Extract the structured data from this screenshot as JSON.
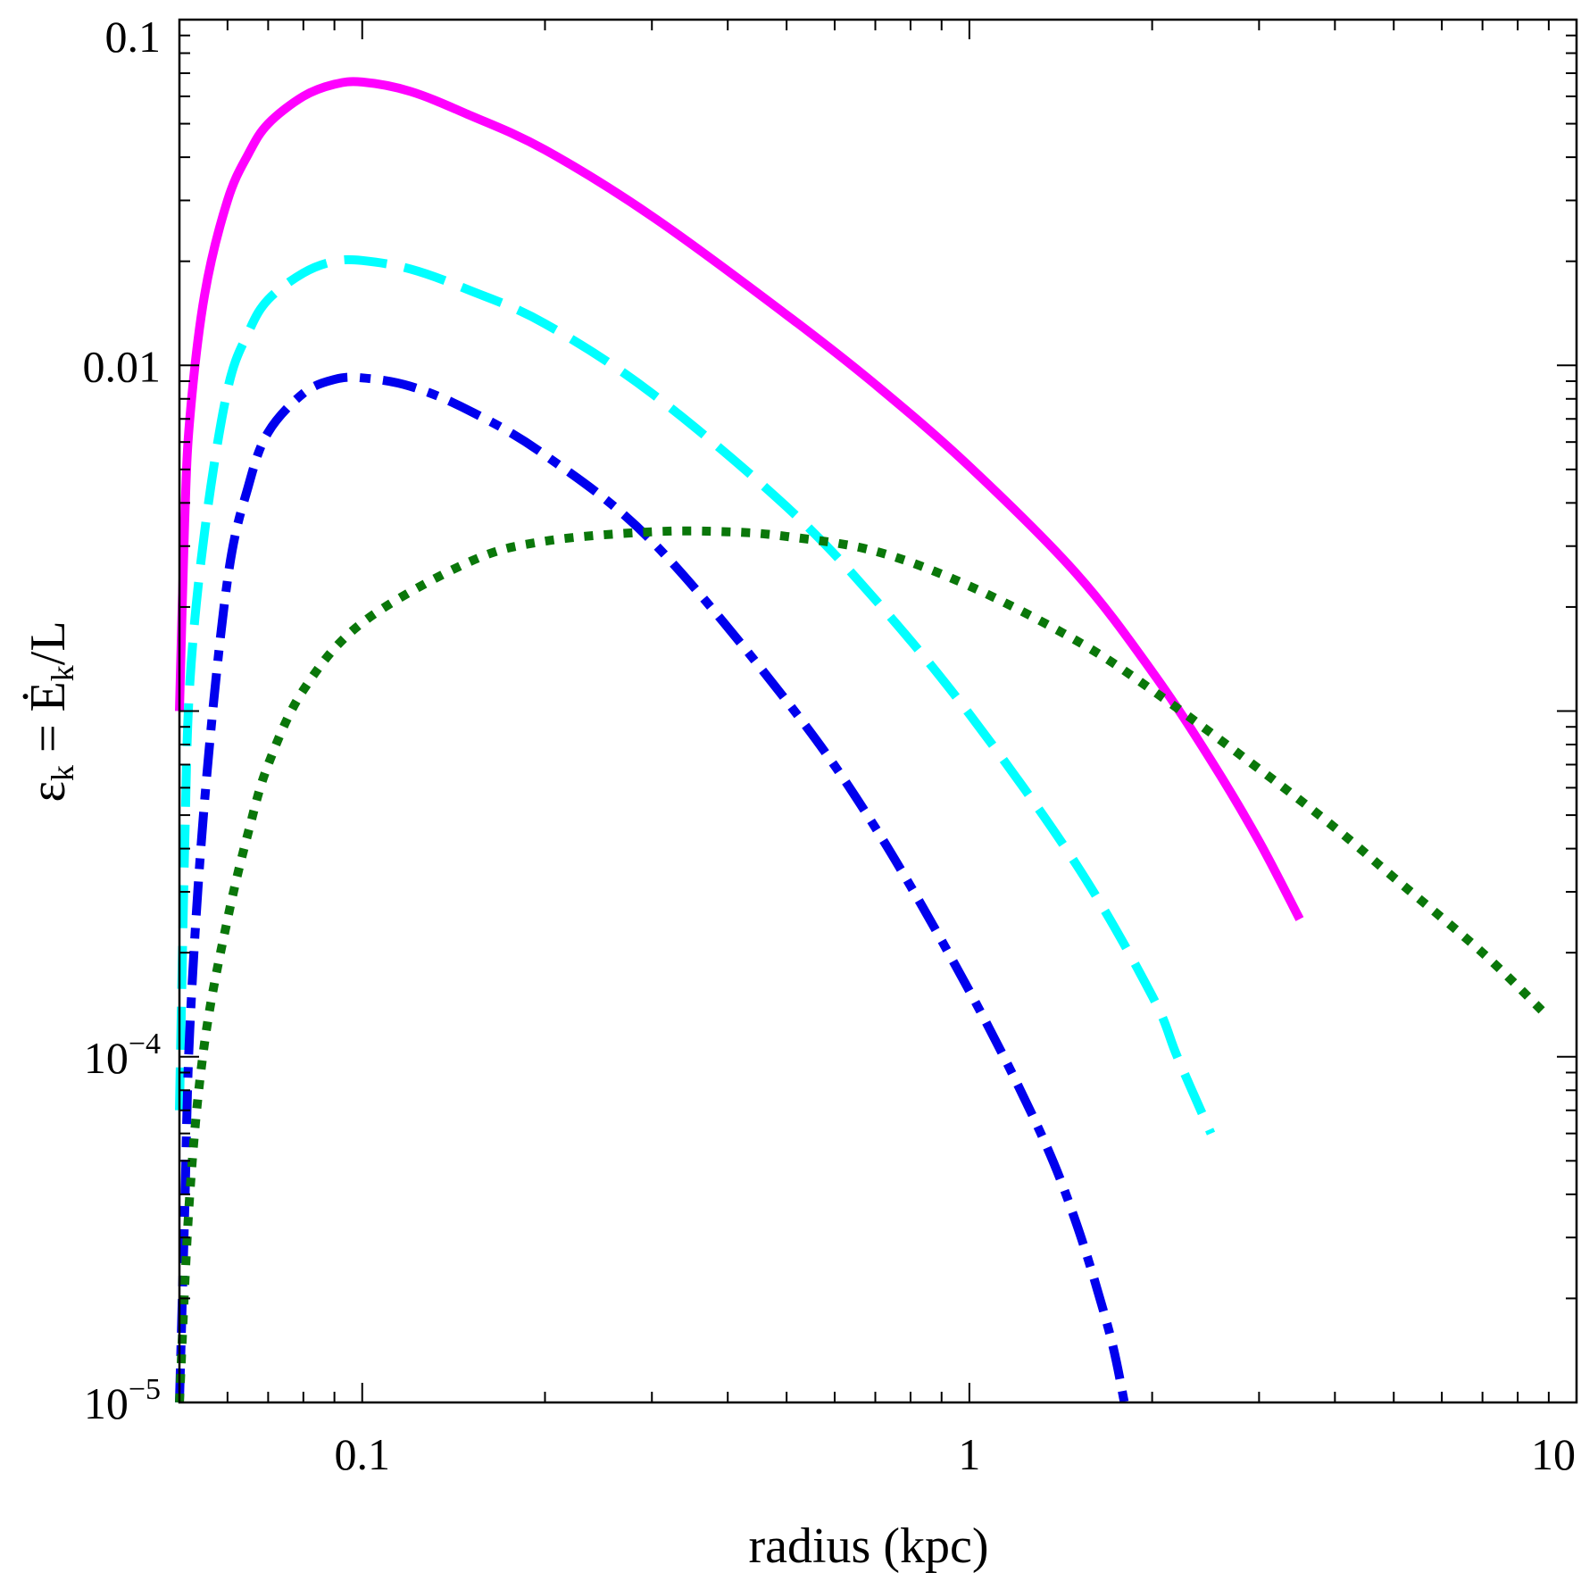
{
  "chart_data": {
    "type": "line",
    "title": "",
    "xlabel": "radius (kpc)",
    "ylabel": {
      "symbol": "ε",
      "sub": "k",
      "eq": " = ",
      "e": "Ė",
      "sub2": "k",
      "tail": "/L"
    },
    "x_scale": "log",
    "y_scale": "log",
    "xlim": [
      0.05,
      10
    ],
    "ylim": [
      1e-05,
      0.1
    ],
    "x_ticks": [
      {
        "value": 0.1,
        "label": "0.1"
      },
      {
        "value": 1,
        "label": "1"
      },
      {
        "value": 10,
        "label": "10"
      }
    ],
    "y_ticks": [
      {
        "value": 0.1,
        "label": "0.1"
      },
      {
        "value": 0.01,
        "label": "0.01"
      },
      {
        "value": 0.0001,
        "label": "10",
        "sup": "−4"
      },
      {
        "value": 1e-05,
        "label": "10",
        "sup": "−5"
      }
    ],
    "series": [
      {
        "name": "magenta-solid",
        "color": "#ff00ff",
        "style": "solid",
        "x": [
          0.05,
          0.051,
          0.052,
          0.055,
          0.06,
          0.065,
          0.07,
          0.08,
          0.09,
          0.1,
          0.12,
          0.15,
          0.2,
          0.3,
          0.5,
          0.7,
          1.0,
          1.5,
          2.0,
          2.5,
          3.0,
          3.5
        ],
        "y": [
          0.001,
          0.0035,
          0.007,
          0.016,
          0.03,
          0.041,
          0.05,
          0.06,
          0.065,
          0.066,
          0.062,
          0.053,
          0.042,
          0.027,
          0.014,
          0.0088,
          0.0051,
          0.0025,
          0.0013,
          0.00072,
          0.00042,
          0.00025
        ]
      },
      {
        "name": "cyan-dashed",
        "color": "#00ffff",
        "style": "dashed",
        "x": [
          0.05,
          0.051,
          0.052,
          0.055,
          0.06,
          0.065,
          0.07,
          0.08,
          0.09,
          0.1,
          0.12,
          0.15,
          0.2,
          0.3,
          0.5,
          0.7,
          1.0,
          1.5,
          2.0,
          2.2,
          2.5
        ],
        "y": [
          7e-05,
          0.0004,
          0.0012,
          0.0033,
          0.0085,
          0.0125,
          0.0155,
          0.0185,
          0.02,
          0.0201,
          0.019,
          0.0165,
          0.0132,
          0.0083,
          0.0039,
          0.0021,
          0.00098,
          0.00036,
          0.00015,
          0.0001,
          6e-05
        ]
      },
      {
        "name": "blue-dash-dot",
        "color": "#0000ee",
        "style": "dashdot",
        "x": [
          0.05,
          0.051,
          0.052,
          0.055,
          0.06,
          0.065,
          0.07,
          0.08,
          0.09,
          0.1,
          0.12,
          0.15,
          0.2,
          0.3,
          0.5,
          0.7,
          1.0,
          1.3,
          1.5,
          1.7,
          1.8
        ],
        "y": [
          1e-05,
          3.5e-05,
          0.00012,
          0.00055,
          0.0024,
          0.0045,
          0.0064,
          0.0083,
          0.0091,
          0.0092,
          0.0087,
          0.0074,
          0.0055,
          0.0031,
          0.00107,
          0.00046,
          0.000155,
          6.2e-05,
          3.3e-05,
          1.6e-05,
          1e-05
        ]
      },
      {
        "name": "green-dotted",
        "color": "#0a770a",
        "style": "dotted",
        "x": [
          0.05,
          0.052,
          0.055,
          0.06,
          0.065,
          0.07,
          0.08,
          0.1,
          0.15,
          0.2,
          0.3,
          0.4,
          0.5,
          0.7,
          1.0,
          1.5,
          2.0,
          3.0,
          4.0,
          5.0,
          7.0,
          9.0
        ],
        "y": [
          1e-05,
          4e-05,
          0.00011,
          0.00025,
          0.00045,
          0.0007,
          0.00115,
          0.0018,
          0.0027,
          0.0031,
          0.0033,
          0.0033,
          0.0032,
          0.0029,
          0.0023,
          0.0016,
          0.00115,
          0.00068,
          0.00046,
          0.00033,
          0.0002,
          0.00013
        ]
      }
    ]
  }
}
